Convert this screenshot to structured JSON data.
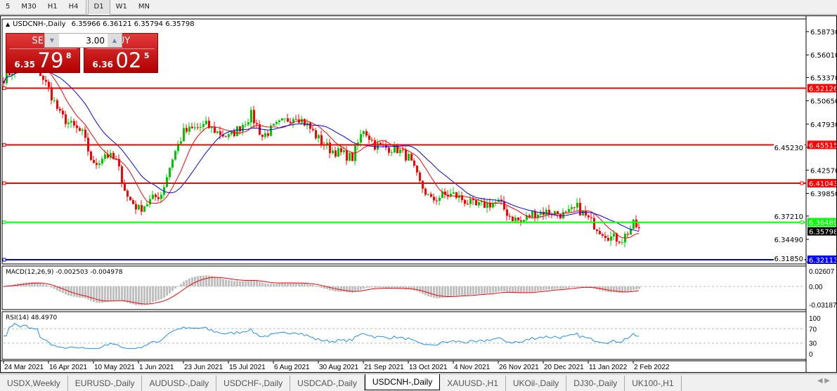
{
  "timeframes": [
    {
      "label": "5"
    },
    {
      "label": "M30"
    },
    {
      "label": "H1"
    },
    {
      "label": "H4"
    },
    {
      "label": "D1",
      "active": true
    },
    {
      "label": "W1"
    },
    {
      "label": "MN"
    }
  ],
  "chart": {
    "title": "USDCNH-,Daily",
    "ohlc": "6.35966 6.36121 6.35794 6.35798"
  },
  "trade_panel": {
    "sell_label": "SELL",
    "buy_label": "BUY",
    "quantity": "3.00",
    "sell_price": {
      "prefix": "6.35",
      "big": "79",
      "sup": "8"
    },
    "buy_price": {
      "prefix": "6.36",
      "big": "02",
      "sup": "5"
    }
  },
  "chart_data": {
    "type": "candlestick",
    "price_axis": {
      "ticks": [
        "6.58730",
        "6.56010",
        "6.53370",
        "6.50650",
        "6.47930",
        "6.45230",
        "6.42570",
        "6.39850",
        "6.37210",
        "6.34490",
        "6.31850"
      ]
    },
    "x_ticks": [
      "24 Mar 2021",
      "16 Apr 2021",
      "10 May 2021",
      "1 Jun 2021",
      "23 Jun 2021",
      "15 Jul 2021",
      "6 Aug 2021",
      "30 Aug 2021",
      "21 Sep 2021",
      "13 Oct 2021",
      "4 Nov 2021",
      "26 Nov 2021",
      "20 Dec 2021",
      "11 Jan 2022",
      "2 Feb 2022"
    ],
    "approx_close_path": [
      6.533,
      6.545,
      6.548,
      6.545,
      6.52,
      6.49,
      6.478,
      6.468,
      6.43,
      6.445,
      6.436,
      6.394,
      6.38,
      6.39,
      6.398,
      6.44,
      6.47,
      6.474,
      6.478,
      6.47,
      6.464,
      6.476,
      6.49,
      6.465,
      6.475,
      6.483,
      6.49,
      6.478,
      6.462,
      6.45,
      6.445,
      6.44,
      6.474,
      6.455,
      6.452,
      6.45,
      6.44,
      6.41,
      6.39,
      6.396,
      6.397,
      6.39,
      6.383,
      6.386,
      6.388,
      6.372,
      6.365,
      6.375,
      6.377,
      6.376,
      6.373,
      6.382,
      6.368,
      6.356,
      6.347,
      6.345,
      6.362,
      6.35798
    ],
    "last_price": "6.35798",
    "horizontal_lines": [
      {
        "price": "6.52126",
        "color": "#ff0000"
      },
      {
        "price": "6.45515",
        "color": "#ff0000"
      },
      {
        "price": "6.41043",
        "color": "#ff0000"
      },
      {
        "price": "6.36489",
        "color": "#00ff00"
      },
      {
        "price": "6.32113",
        "color": "#0000ff"
      }
    ],
    "colors": {
      "bull": "#00c800",
      "bear": "#ff0000",
      "ma_fast": "#ff0000",
      "ma_slow": "#0000ff",
      "macd_hist": "#c0c0c0",
      "macd_signal": "#ff0000",
      "rsi": "#1e90ff"
    },
    "macd": {
      "label": "MACD(12,26,9) -0.002503 -0.004978",
      "ticks": [
        "0.02607",
        "0.00",
        "-0.03187"
      ]
    },
    "rsi": {
      "label": "RSI(14) 48.4970",
      "ticks": [
        "100",
        "70",
        "30",
        "0"
      ],
      "levels": [
        70,
        30
      ]
    }
  },
  "tabs": [
    {
      "label": "USDX,Weekly"
    },
    {
      "label": "EURUSD-,Daily"
    },
    {
      "label": "AUDUSD-,Daily"
    },
    {
      "label": "USDCHF-,Daily"
    },
    {
      "label": "USDCAD-,Daily"
    },
    {
      "label": "USDCNH-,Daily",
      "active": true
    },
    {
      "label": "XAUUSD-,H1"
    },
    {
      "label": "UKOil-,Daily"
    },
    {
      "label": "DJ30-,Daily"
    },
    {
      "label": "UK100-,H1"
    }
  ]
}
